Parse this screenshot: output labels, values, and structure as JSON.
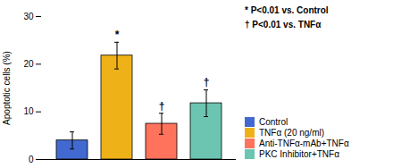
{
  "chart_data": {
    "type": "bar",
    "categories": [
      "Control",
      "TNFα (20 ng/ml)",
      "Anti-TNFα-mAb+TNFα",
      "PKC Inhibitor+TNFα"
    ],
    "values": [
      4.0,
      21.8,
      7.5,
      11.8
    ],
    "errors": [
      1.8,
      2.8,
      2.2,
      2.8
    ],
    "ylabel": "Apoptotic cells (%)",
    "ylim": [
      0,
      30
    ],
    "yticks": [
      0,
      10,
      20,
      30
    ],
    "grid": false,
    "tick_labels": "y",
    "legend": "lower right",
    "annotations": [
      {
        "category": "TNFα (20 ng/ml)",
        "text": "*"
      },
      {
        "category": "Anti-TNFα-mAb+TNFα",
        "text": "†"
      },
      {
        "category": "PKC Inhibitor+TNFα",
        "text": "†"
      }
    ],
    "notes": [
      "* P<0.01 vs. Control",
      "† P<0.01 vs. TNFα"
    ]
  }
}
